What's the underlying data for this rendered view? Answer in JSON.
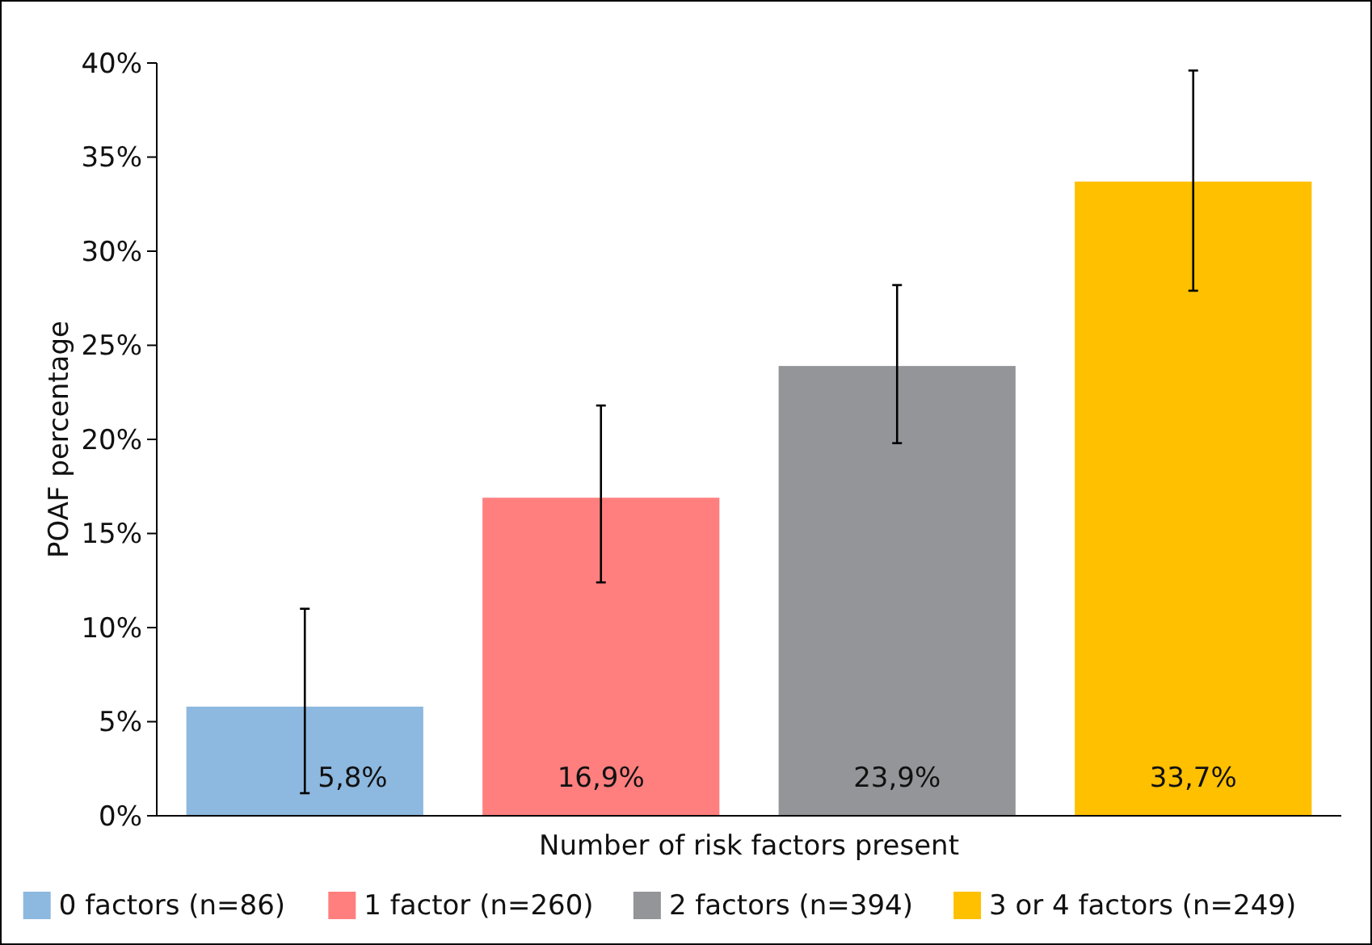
{
  "chart_data": {
    "type": "bar",
    "xlabel": "Number of risk factors present",
    "ylabel": "POAF percentage",
    "categories": [
      null,
      null,
      null,
      null
    ],
    "series": [
      {
        "name": "0 factors (n=86)",
        "color": "#8db8df",
        "values": [
          5.8,
          null,
          null,
          null
        ],
        "errors": [
          [
            1.2,
            11.0
          ],
          null,
          null,
          null
        ],
        "value_labels": [
          "5,8%",
          null,
          null,
          null
        ]
      },
      {
        "name": "1 factor (n=260)",
        "color": "#ff7f7f",
        "values": [
          null,
          16.9,
          null,
          null
        ],
        "errors": [
          null,
          [
            12.4,
            21.8
          ],
          null,
          null
        ],
        "value_labels": [
          null,
          "16,9%",
          null,
          null
        ]
      },
      {
        "name": "2 factors (n=394)",
        "color": "#939598",
        "values": [
          null,
          null,
          23.9,
          null
        ],
        "errors": [
          null,
          null,
          [
            19.8,
            28.2
          ],
          null
        ],
        "value_labels": [
          null,
          null,
          "23,9%",
          null
        ]
      },
      {
        "name": "3 or 4 factors (n=249)",
        "color": "#ffc000",
        "values": [
          null,
          null,
          null,
          33.7
        ],
        "errors": [
          null,
          null,
          null,
          [
            27.9,
            39.6
          ]
        ],
        "value_labels": [
          null,
          null,
          null,
          "33,7%"
        ]
      }
    ],
    "ylim": [
      0,
      40
    ],
    "yticks": [
      {
        "value": 0,
        "label": "0%"
      },
      {
        "value": 5,
        "label": "5%"
      },
      {
        "value": 10,
        "label": "10%"
      },
      {
        "value": 15,
        "label": "15%"
      },
      {
        "value": 20,
        "label": "20%"
      },
      {
        "value": 25,
        "label": "25%"
      },
      {
        "value": 30,
        "label": "30%"
      },
      {
        "value": 35,
        "label": "35%"
      },
      {
        "value": 40,
        "label": "40%"
      }
    ],
    "grid": false,
    "legend": "bottom"
  }
}
